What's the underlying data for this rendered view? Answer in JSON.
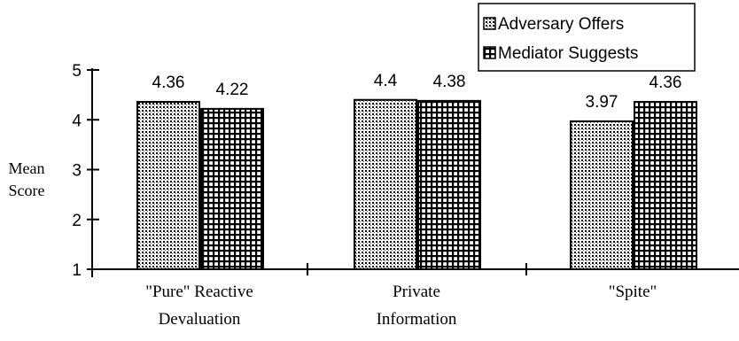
{
  "chart_data": {
    "type": "bar",
    "ylabel": [
      "Mean",
      "Score"
    ],
    "categories": [
      [
        "\"Pure\" Reactive",
        "Devaluation"
      ],
      [
        "Private",
        "Information"
      ],
      [
        "\"Spite\""
      ]
    ],
    "series": [
      {
        "name": "Adversary Offers",
        "values": [
          4.36,
          4.4,
          3.97
        ],
        "value_labels": [
          "4.36",
          "4.4",
          "3.97"
        ],
        "pattern": "dots"
      },
      {
        "name": "Mediator Suggests",
        "values": [
          4.22,
          4.38,
          4.36
        ],
        "value_labels": [
          "4.22",
          "4.38",
          "4.36"
        ],
        "pattern": "grid"
      }
    ],
    "ylim": [
      1,
      5
    ],
    "yticks": [
      1,
      2,
      3,
      4,
      5
    ],
    "legend_position": "top-right",
    "grid": false
  }
}
